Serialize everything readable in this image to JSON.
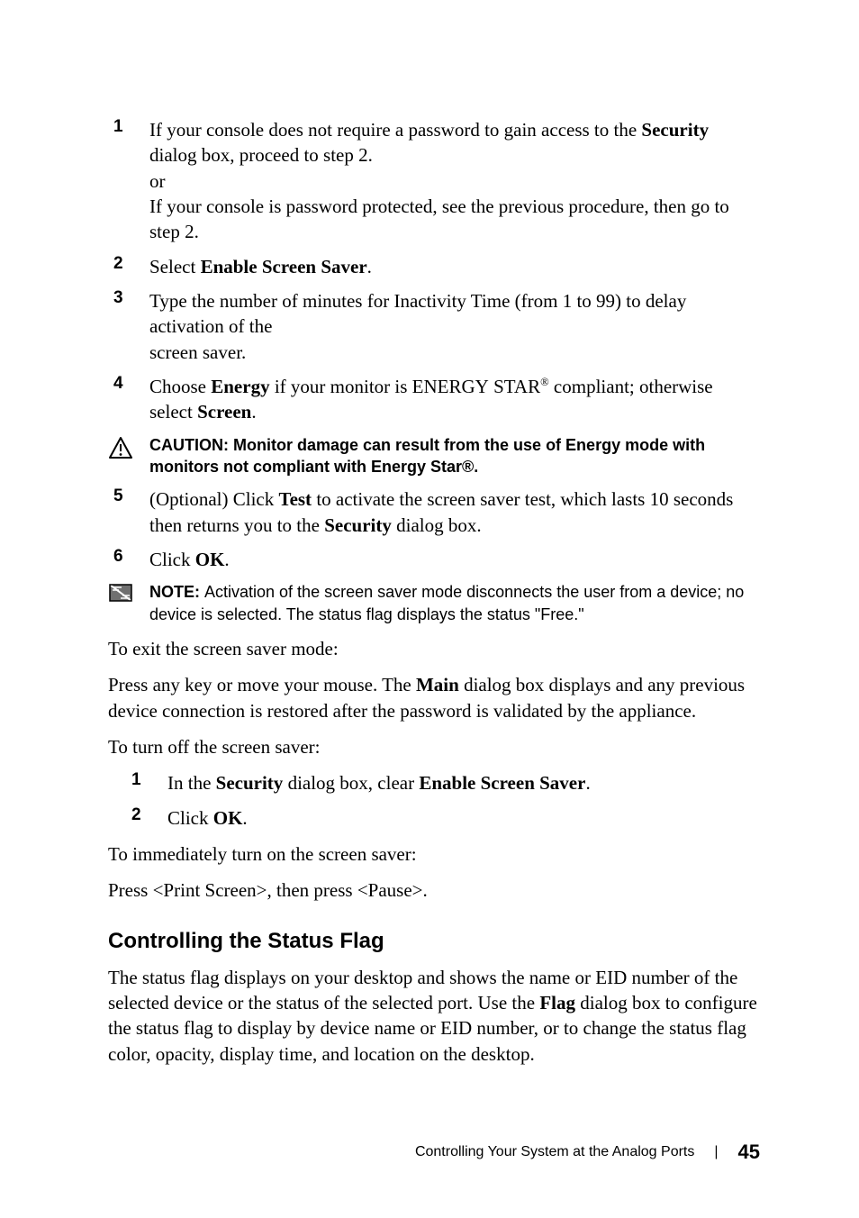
{
  "colors": {
    "text": "#000000",
    "background": "#ffffff",
    "caution_stroke": "#000000",
    "note_fill": "#808080",
    "note_stripe": "#ffffff"
  },
  "list1": [
    {
      "num": "1",
      "parts": [
        {
          "t": "If your console does not require a password to gain access to the "
        },
        {
          "t": "Security",
          "bold": true
        },
        {
          "t": " dialog box, proceed to step 2."
        }
      ],
      "extra": [
        "or",
        "If your console is password protected, see the previous procedure, then go to step 2."
      ]
    },
    {
      "num": "2",
      "parts": [
        {
          "t": "Select "
        },
        {
          "t": "Enable Screen Saver",
          "bold": true
        },
        {
          "t": "."
        }
      ]
    },
    {
      "num": "3",
      "parts": [
        {
          "t": "Type the number of minutes for Inactivity Time (from 1 to 99) to delay activation of the"
        }
      ],
      "extra": [
        "screen saver."
      ]
    },
    {
      "num": "4",
      "parts": [
        {
          "t": "Choose "
        },
        {
          "t": "Energy",
          "bold": true
        },
        {
          "t": " if your monitor is E"
        },
        {
          "t": "NERGY",
          "sc": true
        },
        {
          "t": " S"
        },
        {
          "t": "TAR",
          "sc": true
        },
        {
          "t": "®",
          "sup": true
        },
        {
          "t": " compliant; otherwise select "
        },
        {
          "t": "Screen",
          "bold": true
        },
        {
          "t": "."
        }
      ]
    }
  ],
  "caution": {
    "label": "CAUTION:  ",
    "text": "Monitor damage can result from the use of Energy mode with monitors not compliant with Energy Star®."
  },
  "list2": [
    {
      "num": "5",
      "parts": [
        {
          "t": "(Optional) Click "
        },
        {
          "t": "Test",
          "bold": true
        },
        {
          "t": " to activate the screen saver test, which lasts 10 seconds then returns you to the "
        },
        {
          "t": "Security",
          "bold": true
        },
        {
          "t": " dialog box."
        }
      ]
    },
    {
      "num": "6",
      "parts": [
        {
          "t": "Click "
        },
        {
          "t": "OK",
          "bold": true
        },
        {
          "t": "."
        }
      ]
    }
  ],
  "note": {
    "label": "NOTE: ",
    "text": "Activation of the screen saver mode disconnects the user from a device; no device is selected. The status flag displays the status \"Free.\""
  },
  "para1": "To exit the screen saver mode:",
  "para2_parts": [
    {
      "t": "Press any key or move your mouse. The "
    },
    {
      "t": "Main",
      "bold": true
    },
    {
      "t": " dialog box displays and any previous device connection is restored after the password is validated by the appliance."
    }
  ],
  "para3": "To turn off the screen saver:",
  "list3": [
    {
      "num": "1",
      "parts": [
        {
          "t": "In the "
        },
        {
          "t": "Security",
          "bold": true
        },
        {
          "t": " dialog box, clear "
        },
        {
          "t": "Enable Screen Saver",
          "bold": true
        },
        {
          "t": "."
        }
      ]
    },
    {
      "num": "2",
      "parts": [
        {
          "t": "Click "
        },
        {
          "t": "OK",
          "bold": true
        },
        {
          "t": "."
        }
      ]
    }
  ],
  "para4": "To immediately turn on the screen saver:",
  "para5": "Press <Print Screen>, then press <Pause>.",
  "h2": "Controlling the Status Flag",
  "para6_parts": [
    {
      "t": "The status flag displays on your desktop and shows the name or EID number of the selected device or the status of the selected port. Use the "
    },
    {
      "t": "Flag",
      "bold": true
    },
    {
      "t": " dialog box to configure the status flag to display by device name or EID number, or to change the status flag color, opacity, display time, and location on the desktop."
    }
  ],
  "footer": {
    "title": "Controlling Your System at the Analog Ports",
    "sep": "|",
    "page": "45"
  }
}
